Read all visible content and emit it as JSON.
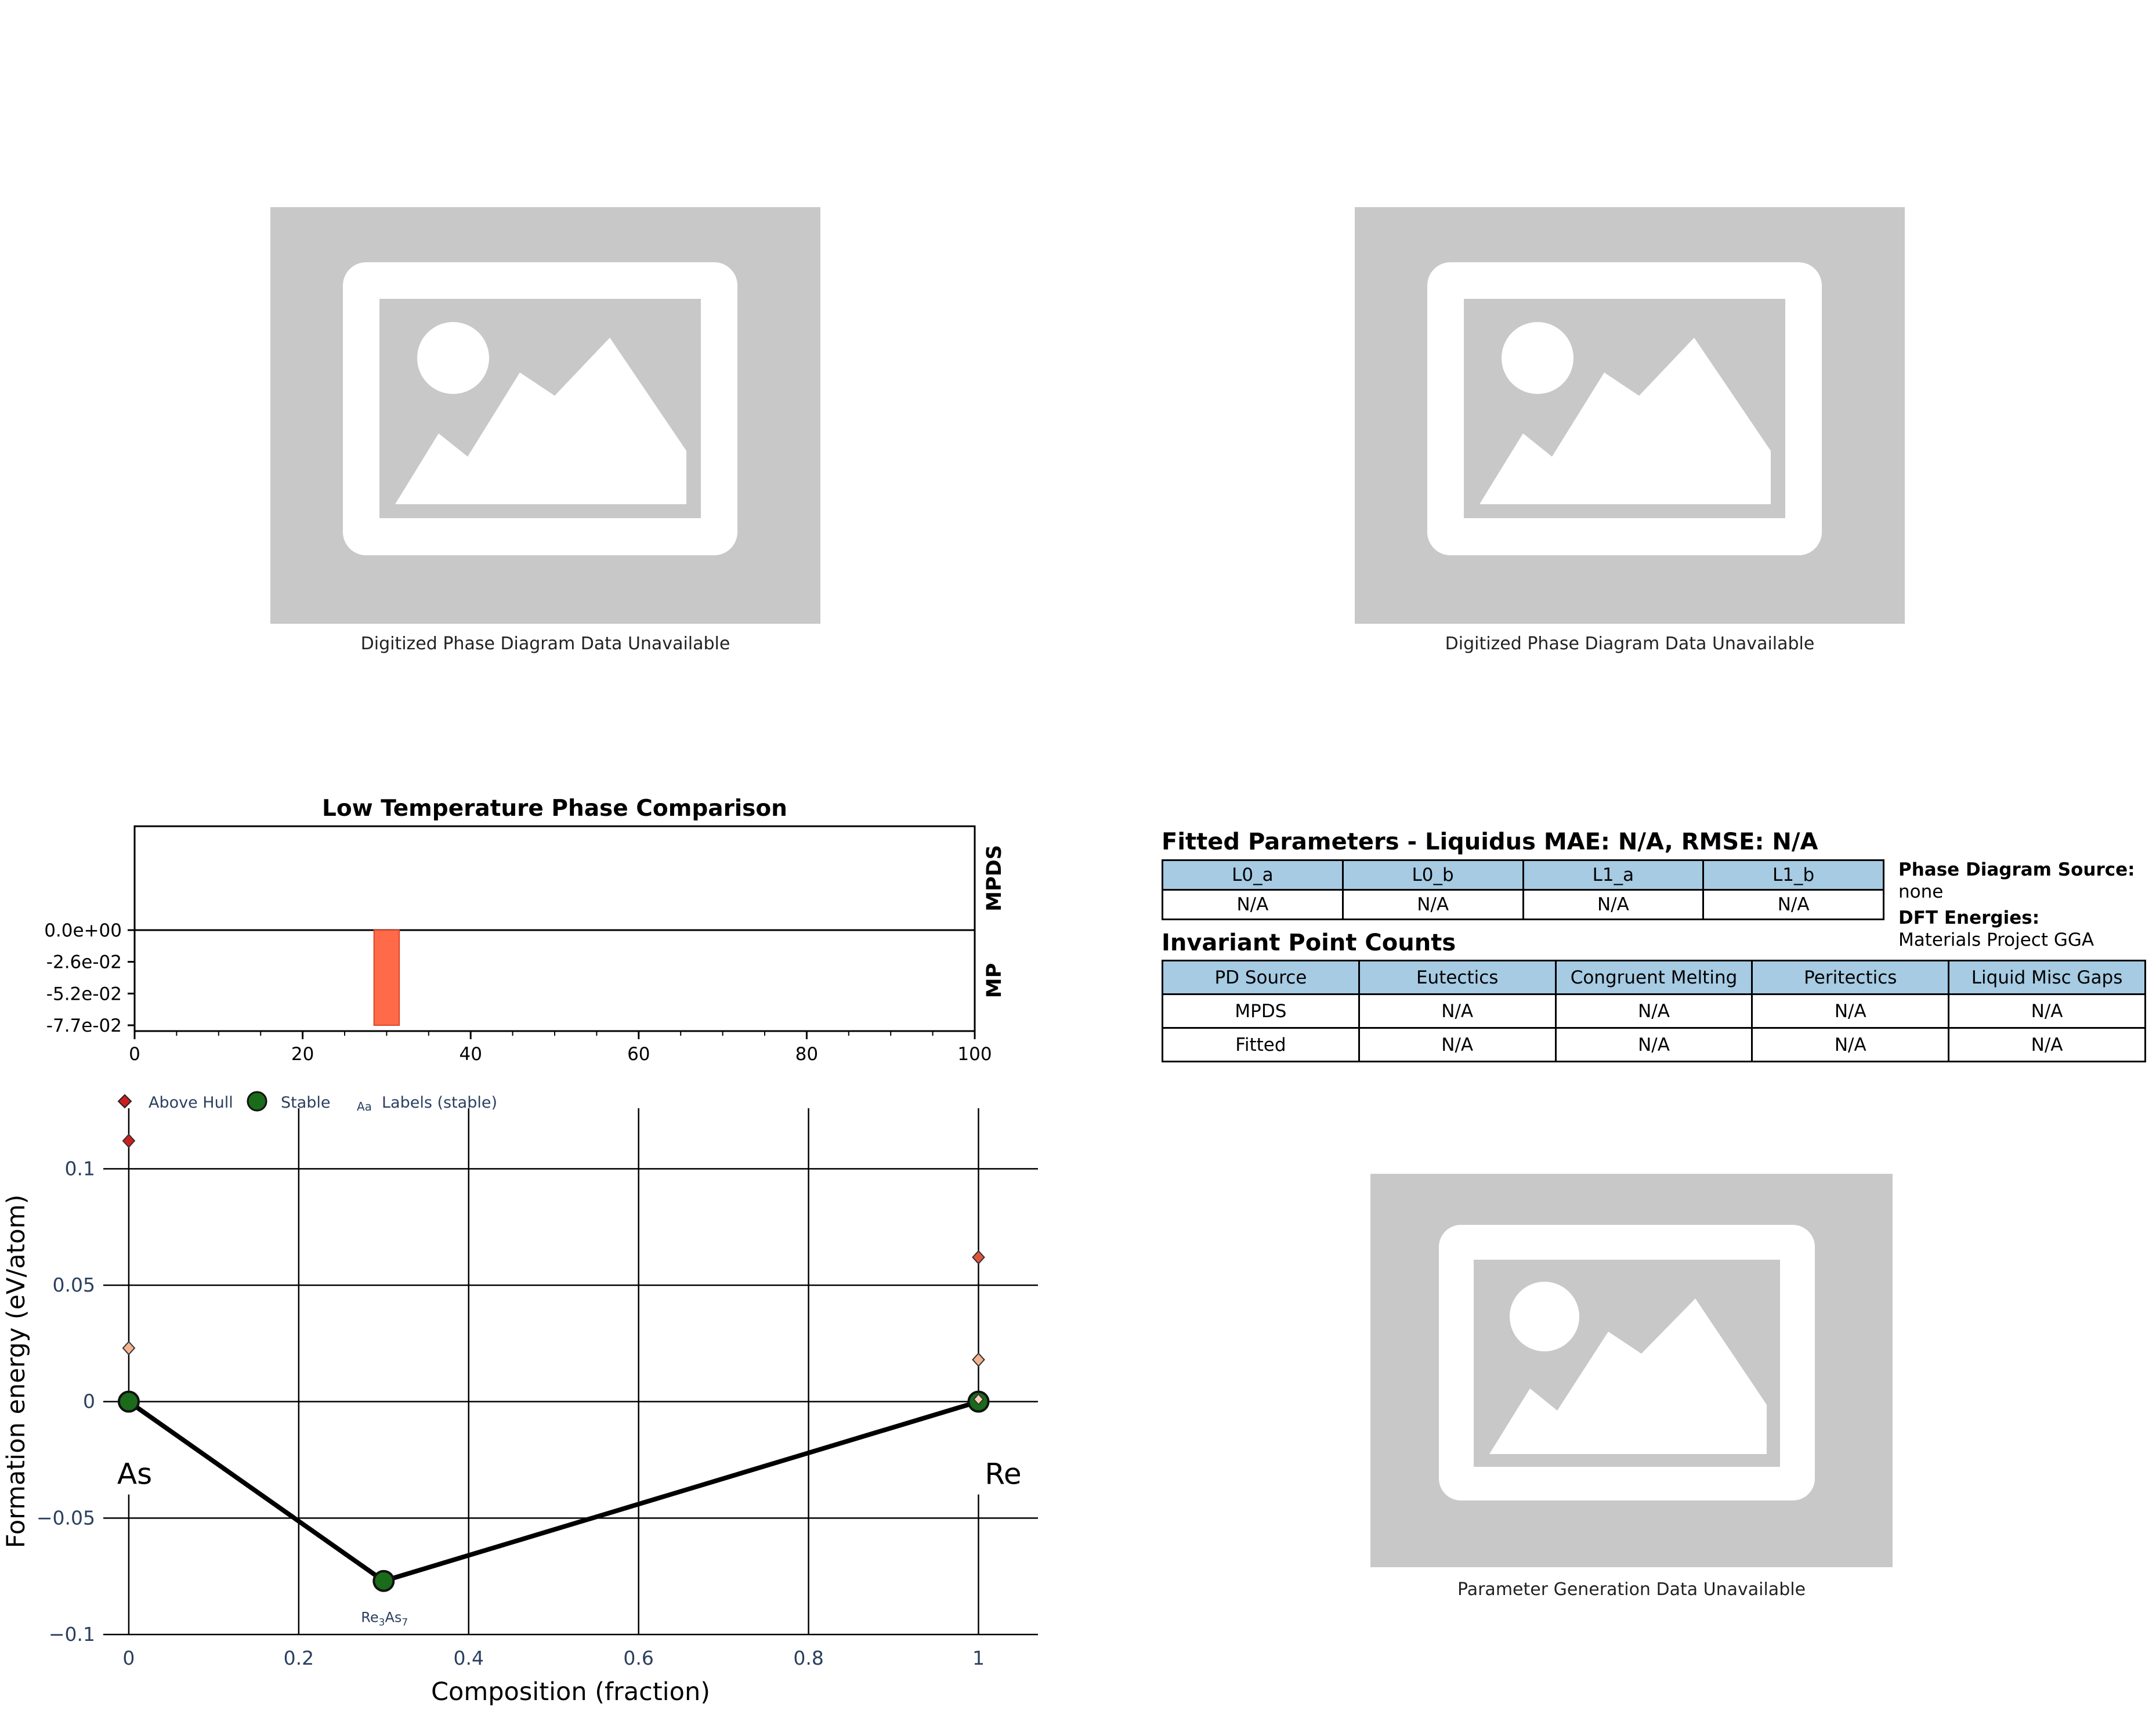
{
  "placeholders": {
    "top_left_caption": "Digitized Phase Diagram Data Unavailable",
    "top_right_caption": "Digitized Phase Diagram Data Unavailable",
    "bottom_right_caption": "Parameter Generation Data Unavailable",
    "icon": "image-placeholder-icon"
  },
  "fitted": {
    "title": "Fitted Parameters - Liquidus MAE: N/A, RMSE: N/A",
    "headers": [
      "L0_a",
      "L0_b",
      "L1_a",
      "L1_b"
    ],
    "values": [
      "N/A",
      "N/A",
      "N/A",
      "N/A"
    ]
  },
  "side_info": {
    "pd_source_label": "Phase Diagram Source:",
    "pd_source_value": "none",
    "dft_label": "DFT Energies:",
    "dft_value": "Materials Project GGA"
  },
  "invariant": {
    "title": "Invariant Point Counts",
    "headers": [
      "PD Source",
      "Eutectics",
      "Congruent Melting",
      "Peritectics",
      "Liquid Misc Gaps"
    ],
    "rows": [
      [
        "MPDS",
        "N/A",
        "N/A",
        "N/A",
        "N/A"
      ],
      [
        "Fitted",
        "N/A",
        "N/A",
        "N/A",
        "N/A"
      ]
    ]
  },
  "chart_data": [
    {
      "type": "bar",
      "title": "Low Temperature Phase Comparison",
      "xlim": [
        0,
        100
      ],
      "xticks": [
        "0",
        "20",
        "40",
        "60",
        "80",
        "100"
      ],
      "row_labels": [
        "MPDS",
        "MP"
      ],
      "yticks": [
        "0.0e+00",
        "-2.6e-02",
        "-5.2e-02",
        "-7.7e-02"
      ],
      "ylim": [
        -0.077,
        0
      ],
      "bars": [
        {
          "row": "MP",
          "x_start": 28.5,
          "x_end": 31.5,
          "value": -0.077,
          "color": "#ff6a48"
        }
      ],
      "colors": {
        "bar": "#ff6a48"
      }
    },
    {
      "type": "scatter",
      "xlabel": "Composition (fraction)",
      "ylabel": "Formation energy (eV/atom)",
      "xlim": [
        -0.03,
        1.07
      ],
      "ylim": [
        -0.1,
        0.126
      ],
      "xticks": [
        {
          "v": 0,
          "label": "0"
        },
        {
          "v": 0.2,
          "label": "0.2"
        },
        {
          "v": 0.4,
          "label": "0.4"
        },
        {
          "v": 0.6,
          "label": "0.6"
        },
        {
          "v": 0.8,
          "label": "0.8"
        },
        {
          "v": 1,
          "label": "1"
        }
      ],
      "yticks": [
        {
          "v": 0.1,
          "label": "0.1"
        },
        {
          "v": 0.05,
          "label": "0.05"
        },
        {
          "v": 0,
          "label": "0"
        },
        {
          "v": -0.05,
          "label": "−0.05"
        },
        {
          "v": -0.1,
          "label": "−0.1"
        }
      ],
      "legend": [
        "Above Hull",
        "Stable",
        "Labels (stable)"
      ],
      "legend_glyph": "Aa",
      "hull_line": [
        [
          0,
          0
        ],
        [
          0.3,
          -0.077
        ],
        [
          1,
          0
        ]
      ],
      "stable": [
        {
          "x": 0,
          "y": 0
        },
        {
          "x": 0.3,
          "y": -0.077,
          "label_main": "Re",
          "label_sub1": "3",
          "label_mid": "As",
          "label_sub2": "7"
        },
        {
          "x": 1,
          "y": 0
        }
      ],
      "above_hull": [
        {
          "x": 0,
          "y": 0.112,
          "color": "#cc1f1f"
        },
        {
          "x": 0,
          "y": 0.023,
          "color": "#f2b48f"
        },
        {
          "x": 1,
          "y": 0.062,
          "color": "#e0553a"
        },
        {
          "x": 1,
          "y": 0.018,
          "color": "#f2b48f"
        },
        {
          "x": 1,
          "y": 0.001,
          "color": "#f7d3ba"
        }
      ],
      "element_labels": {
        "left": "As",
        "right": "Re"
      },
      "colors": {
        "stable": "#1a6b1a",
        "line": "#000000",
        "axis_text": "#2a3f5f"
      }
    }
  ]
}
